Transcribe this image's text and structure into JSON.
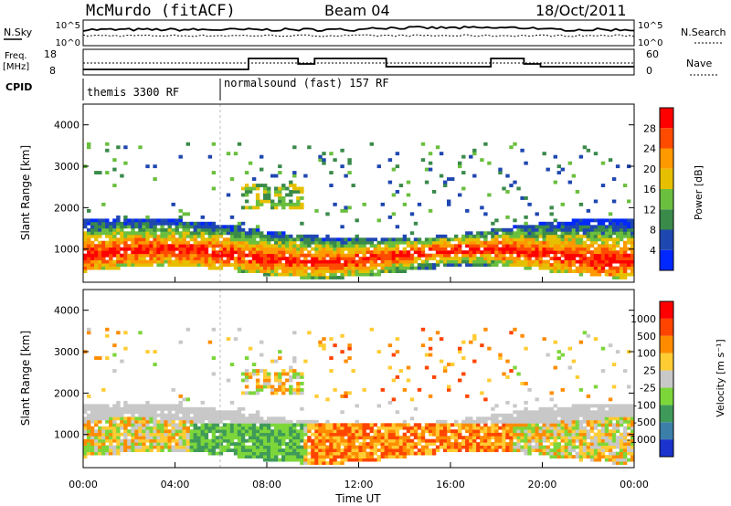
{
  "header": {
    "station": "McMurdo (fitACF)",
    "beam": "Beam 04",
    "date": "18/Oct/2011"
  },
  "top_panels": {
    "nsky_label": "N.Sky",
    "nsky_ticks": [
      "10^5",
      "10^0"
    ],
    "nsearch_label": "N.Search",
    "nsearch_ticks": [
      "10^5",
      "10^0"
    ],
    "freq_label_top": "Freq.",
    "freq_label_bottom": "[MHz]",
    "freq_ticks": [
      "18",
      "8"
    ],
    "nave_label": "Nave",
    "nave_ticks": [
      "60",
      "0"
    ],
    "cpid_label": "CPID",
    "cpid_segments": [
      "themis 3300 RF",
      "normalsound (fast) 157 RF"
    ]
  },
  "chart_data": [
    {
      "type": "heatmap",
      "name": "power",
      "ylabel": "Slant Range [km]",
      "xlabel": "",
      "ylim": [
        200,
        4500
      ],
      "yticks": [
        "1000",
        "2000",
        "3000",
        "4000"
      ],
      "colorbar_label": "Power [dB]",
      "colorbar_ticks": [
        "4",
        "8",
        "12",
        "16",
        "20",
        "24",
        "28"
      ],
      "colorbar_colors": [
        "#0028ff",
        "#1f47b0",
        "#3a8a4a",
        "#6abf3e",
        "#e6c000",
        "#ff9900",
        "#ff4b00",
        "#ff0000"
      ],
      "colorbar_range": [
        0,
        32
      ]
    },
    {
      "type": "heatmap",
      "name": "velocity",
      "ylabel": "Slant Range [km]",
      "xlabel": "Time UT",
      "ylim": [
        200,
        4500
      ],
      "yticks": [
        "1000",
        "2000",
        "3000",
        "4000"
      ],
      "colorbar_label": "Velocity [m s⁻¹]",
      "colorbar_ticks": [
        "1000",
        "500",
        "100",
        "25",
        "-25",
        "-100",
        "-500",
        "-1000"
      ],
      "colorbar_colors": [
        "#1a33cc",
        "#3c7fa8",
        "#3f9a5a",
        "#7cd63a",
        "#c8c8c8",
        "#ffcc33",
        "#ff8c00",
        "#ff4400",
        "#ff0000"
      ]
    }
  ],
  "x_axis": {
    "label": "Time UT",
    "ticks": [
      "00:00",
      "04:00",
      "08:00",
      "12:00",
      "16:00",
      "20:00",
      "00:00"
    ]
  }
}
